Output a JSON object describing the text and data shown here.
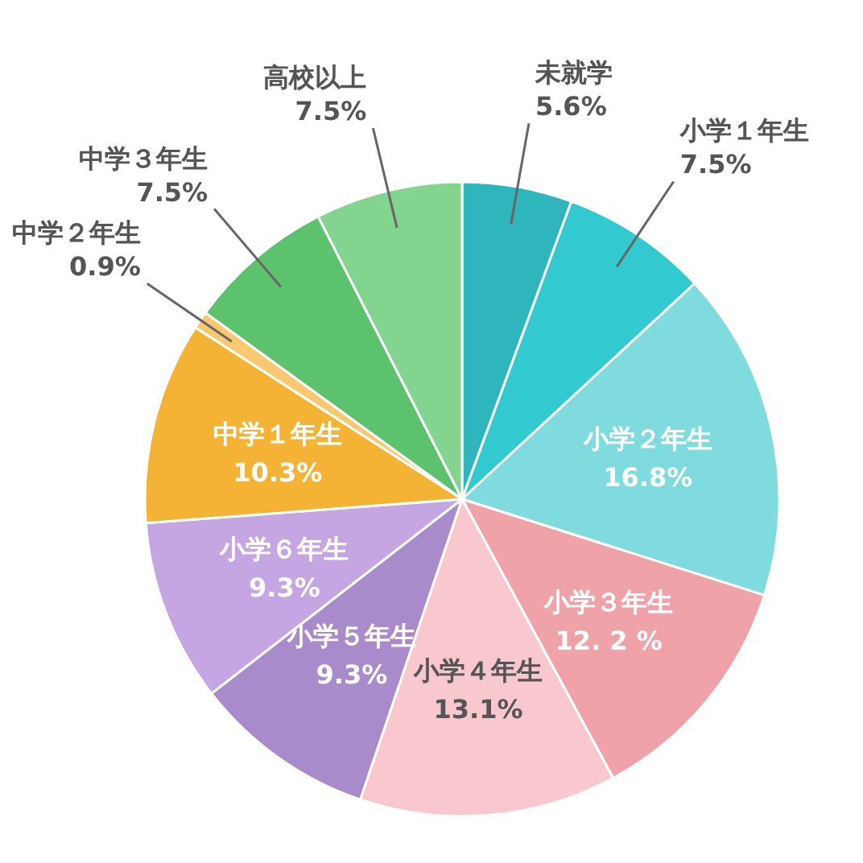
{
  "chart_data": {
    "type": "pie",
    "categories": [
      "未就学",
      "小学１年生",
      "小学２年生",
      "小学３年生",
      "小学４年生",
      "小学５年生",
      "小学６年生",
      "中学１年生",
      "中学２年生",
      "中学３年生",
      "高校以上"
    ],
    "values": [
      5.6,
      7.5,
      16.8,
      12.2,
      13.1,
      9.3,
      9.3,
      10.3,
      0.9,
      7.5,
      7.5
    ],
    "colors": [
      "#2fb5bc",
      "#33c9d0",
      "#7fdbde",
      "#efa3a8",
      "#f9c8cf",
      "#a98bcb",
      "#c6a5e3",
      "#f5b335",
      "#f8c970",
      "#5cc26e",
      "#82d48f"
    ],
    "value_labels": [
      "5.6%",
      "7.5%",
      "16.8%",
      "12. 2 %",
      "13.1%",
      "9.3%",
      "9.3%",
      "10.3%",
      "0.9%",
      "7.5%",
      "7.5%"
    ]
  }
}
